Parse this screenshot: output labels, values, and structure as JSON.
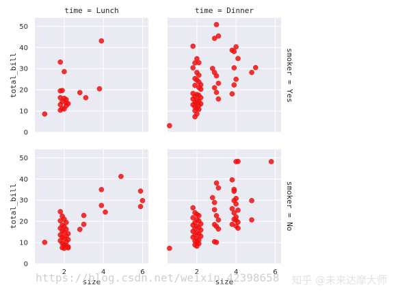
{
  "chart_data": {
    "type": "scatter",
    "x_var": "size",
    "y_var": "total_bill",
    "xlabel": "size",
    "ylabel": "total_bill",
    "xlim": [
      0.5,
      6.3
    ],
    "ylim": [
      0,
      54
    ],
    "x_ticks": [
      2,
      4,
      6
    ],
    "y_ticks": [
      0,
      10,
      20,
      30,
      40,
      50
    ],
    "grid": true,
    "point_color": "#ee1111",
    "panels": [
      {
        "col_title": "time = Lunch",
        "row_title": "",
        "points": [
          [
            1.0,
            8.6
          ],
          [
            1.8,
            33.1
          ],
          [
            1.9,
            19.7
          ],
          [
            1.8,
            19.5
          ],
          [
            2.0,
            28.6
          ],
          [
            1.8,
            16.3
          ],
          [
            2.0,
            16.0
          ],
          [
            2.1,
            15.4
          ],
          [
            1.9,
            14.5
          ],
          [
            2.1,
            13.8
          ],
          [
            2.2,
            13.5
          ],
          [
            1.8,
            13.0
          ],
          [
            2.1,
            12.5
          ],
          [
            1.9,
            11.2
          ],
          [
            2.0,
            11.0
          ],
          [
            1.8,
            10.4
          ],
          [
            2.8,
            18.7
          ],
          [
            3.1,
            16.3
          ],
          [
            3.8,
            20.5
          ],
          [
            3.9,
            43.1
          ]
        ]
      },
      {
        "col_title": "time = Dinner",
        "row_title": "smoker = Yes",
        "points": [
          [
            0.6,
            3.1
          ],
          [
            1.8,
            40.6
          ],
          [
            1.9,
            32.7
          ],
          [
            2.0,
            34.7
          ],
          [
            2.1,
            32.8
          ],
          [
            1.8,
            30.4
          ],
          [
            2.0,
            28.2
          ],
          [
            2.1,
            26.9
          ],
          [
            1.9,
            25.3
          ],
          [
            2.0,
            24.6
          ],
          [
            2.1,
            23.7
          ],
          [
            2.2,
            22.4
          ],
          [
            1.9,
            22.1
          ],
          [
            2.1,
            21.1
          ],
          [
            2.2,
            20.3
          ],
          [
            1.8,
            18.3
          ],
          [
            2.0,
            17.8
          ],
          [
            2.1,
            17.4
          ],
          [
            1.9,
            16.9
          ],
          [
            2.2,
            16.3
          ],
          [
            1.8,
            15.7
          ],
          [
            2.0,
            15.2
          ],
          [
            2.1,
            14.7
          ],
          [
            1.9,
            14.2
          ],
          [
            2.0,
            13.8
          ],
          [
            2.2,
            13.4
          ],
          [
            1.8,
            13.0
          ],
          [
            2.1,
            12.6
          ],
          [
            1.9,
            12.0
          ],
          [
            2.0,
            11.4
          ],
          [
            2.1,
            10.8
          ],
          [
            1.9,
            10.2
          ],
          [
            2.0,
            8.6
          ],
          [
            1.9,
            7.3
          ],
          [
            2.8,
            30.1
          ],
          [
            2.9,
            28.2
          ],
          [
            3.0,
            50.8
          ],
          [
            3.1,
            45.4
          ],
          [
            2.9,
            44.3
          ],
          [
            3.0,
            26.6
          ],
          [
            2.9,
            21.0
          ],
          [
            3.1,
            23.1
          ],
          [
            3.0,
            18.8
          ],
          [
            3.1,
            15.7
          ],
          [
            3.8,
            38.7
          ],
          [
            3.9,
            38.1
          ],
          [
            4.0,
            40.3
          ],
          [
            4.1,
            34.8
          ],
          [
            3.9,
            30.4
          ],
          [
            4.0,
            25.0
          ],
          [
            3.9,
            22.3
          ],
          [
            3.8,
            18.1
          ],
          [
            4.8,
            28.2
          ],
          [
            5.0,
            30.5
          ]
        ]
      },
      {
        "col_title": "",
        "row_title": "",
        "points": [
          [
            1.0,
            10.1
          ],
          [
            1.8,
            24.6
          ],
          [
            1.9,
            22.5
          ],
          [
            2.0,
            21.0
          ],
          [
            1.8,
            20.3
          ],
          [
            2.1,
            19.5
          ],
          [
            1.9,
            18.2
          ],
          [
            2.0,
            17.5
          ],
          [
            1.8,
            16.8
          ],
          [
            2.1,
            16.3
          ],
          [
            1.9,
            15.5
          ],
          [
            2.0,
            14.8
          ],
          [
            2.2,
            14.2
          ],
          [
            1.8,
            13.6
          ],
          [
            2.1,
            13.0
          ],
          [
            1.9,
            12.5
          ],
          [
            2.0,
            12.0
          ],
          [
            2.2,
            11.4
          ],
          [
            1.8,
            10.9
          ],
          [
            2.1,
            10.3
          ],
          [
            1.9,
            9.6
          ],
          [
            2.0,
            9.0
          ],
          [
            2.1,
            8.6
          ],
          [
            2.2,
            8.0
          ],
          [
            1.9,
            7.6
          ],
          [
            2.0,
            7.3
          ],
          [
            2.2,
            7.5
          ],
          [
            2.8,
            16.2
          ],
          [
            3.0,
            18.6
          ],
          [
            3.0,
            22.8
          ],
          [
            3.9,
            35.0
          ],
          [
            3.9,
            27.5
          ],
          [
            4.1,
            24.4
          ],
          [
            4.9,
            41.2
          ],
          [
            5.9,
            34.3
          ],
          [
            6.0,
            29.8
          ],
          [
            5.9,
            27.0
          ]
        ]
      },
      {
        "col_title": "",
        "row_title": "smoker = No",
        "points": [
          [
            0.6,
            7.3
          ],
          [
            1.8,
            26.4
          ],
          [
            1.9,
            24.1
          ],
          [
            2.0,
            23.3
          ],
          [
            2.1,
            22.7
          ],
          [
            1.8,
            21.7
          ],
          [
            2.0,
            20.8
          ],
          [
            2.1,
            20.2
          ],
          [
            1.9,
            19.4
          ],
          [
            2.2,
            18.8
          ],
          [
            1.8,
            18.2
          ],
          [
            2.0,
            17.6
          ],
          [
            2.1,
            17.0
          ],
          [
            1.9,
            16.5
          ],
          [
            2.2,
            15.9
          ],
          [
            1.8,
            15.3
          ],
          [
            2.0,
            14.7
          ],
          [
            2.1,
            14.2
          ],
          [
            1.9,
            13.6
          ],
          [
            2.2,
            13.0
          ],
          [
            1.8,
            12.5
          ],
          [
            2.0,
            11.9
          ],
          [
            2.1,
            11.3
          ],
          [
            1.9,
            10.8
          ],
          [
            2.0,
            10.1
          ],
          [
            2.1,
            9.5
          ],
          [
            1.9,
            8.9
          ],
          [
            2.0,
            8.3
          ],
          [
            2.8,
            31.2
          ],
          [
            2.9,
            28.9
          ],
          [
            3.0,
            38.1
          ],
          [
            3.1,
            35.8
          ],
          [
            2.9,
            25.5
          ],
          [
            3.0,
            22.7
          ],
          [
            3.1,
            20.7
          ],
          [
            2.9,
            18.5
          ],
          [
            3.0,
            17.6
          ],
          [
            3.1,
            16.4
          ],
          [
            2.9,
            10.4
          ],
          [
            3.0,
            10.1
          ],
          [
            3.8,
            39.6
          ],
          [
            3.9,
            35.1
          ],
          [
            4.0,
            48.2
          ],
          [
            4.1,
            48.3
          ],
          [
            3.9,
            34.2
          ],
          [
            4.0,
            30.8
          ],
          [
            3.9,
            29.8
          ],
          [
            4.0,
            28.2
          ],
          [
            3.8,
            26.0
          ],
          [
            4.1,
            25.3
          ],
          [
            3.9,
            24.0
          ],
          [
            4.0,
            22.1
          ],
          [
            3.9,
            21.0
          ],
          [
            4.0,
            20.5
          ],
          [
            4.1,
            19.6
          ],
          [
            3.8,
            18.6
          ],
          [
            4.0,
            17.8
          ],
          [
            4.1,
            16.8
          ],
          [
            4.8,
            29.8
          ],
          [
            4.8,
            20.7
          ],
          [
            5.8,
            48.2
          ]
        ]
      }
    ]
  },
  "watermark": {
    "url_text": "https://blog.csdn.net/weixin_42398658",
    "brand_text": "知乎 @未来达摩大师"
  }
}
